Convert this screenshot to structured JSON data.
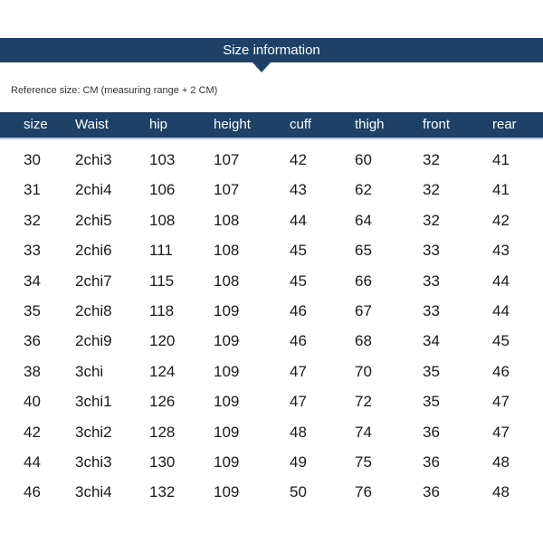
{
  "title": "Size information",
  "reference_note": "Reference size: CM (measuring range + 2 CM)",
  "colors": {
    "band": "#1e4168",
    "text": "#1a1a1a"
  },
  "table": {
    "headers": [
      "size",
      "Waist",
      "hip",
      "height",
      "cuff",
      "thigh",
      "front",
      "rear"
    ],
    "rows": [
      [
        "30",
        "2chi3",
        "103",
        "107",
        "42",
        "60",
        "32",
        "41"
      ],
      [
        "31",
        "2chi4",
        "106",
        "107",
        "43",
        "62",
        "32",
        "41"
      ],
      [
        "32",
        "2chi5",
        "108",
        "108",
        "44",
        "64",
        "32",
        "42"
      ],
      [
        "33",
        "2chi6",
        "111",
        "108",
        "45",
        "65",
        "33",
        "43"
      ],
      [
        "34",
        "2chi7",
        "115",
        "108",
        "45",
        "66",
        "33",
        "44"
      ],
      [
        "35",
        "2chi8",
        "118",
        "109",
        "46",
        "67",
        "33",
        "44"
      ],
      [
        "36",
        "2chi9",
        "120",
        "109",
        "46",
        "68",
        "34",
        "45"
      ],
      [
        "38",
        "3chi",
        "124",
        "109",
        "47",
        "70",
        "35",
        "46"
      ],
      [
        "40",
        "3chi1",
        "126",
        "109",
        "47",
        "72",
        "35",
        "47"
      ],
      [
        "42",
        "3chi2",
        "128",
        "109",
        "48",
        "74",
        "36",
        "47"
      ],
      [
        "44",
        "3chi3",
        "130",
        "109",
        "49",
        "75",
        "36",
        "48"
      ],
      [
        "46",
        "3chi4",
        "132",
        "109",
        "50",
        "76",
        "36",
        "48"
      ]
    ]
  }
}
